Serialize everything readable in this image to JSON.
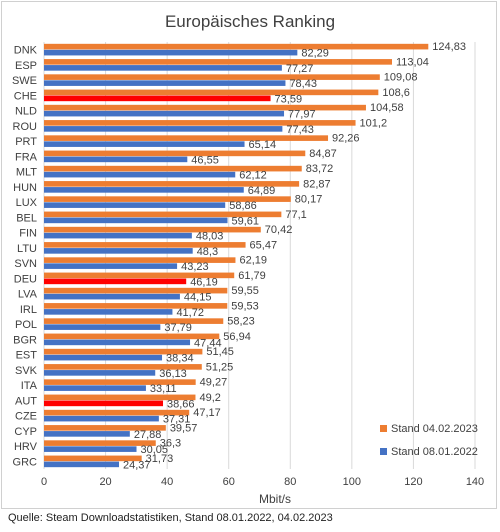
{
  "chart_data": {
    "type": "bar",
    "orientation": "horizontal",
    "title": "Europäisches Ranking",
    "xlabel": "Mbit/s",
    "ylabel": "",
    "xlim": [
      0,
      140
    ],
    "xticks": [
      "0",
      "20",
      "40",
      "60",
      "80",
      "100",
      "120",
      "140"
    ],
    "grid": true,
    "legend_position": "bottom-right",
    "categories": [
      "DNK",
      "ESP",
      "SWE",
      "CHE",
      "NLD",
      "ROU",
      "PRT",
      "FRA",
      "MLT",
      "HUN",
      "LUX",
      "BEL",
      "FIN",
      "LTU",
      "SVN",
      "DEU",
      "LVA",
      "IRL",
      "POL",
      "BGR",
      "EST",
      "SVK",
      "ITA",
      "AUT",
      "CZE",
      "CYP",
      "HRV",
      "GRC"
    ],
    "series": [
      {
        "name": "Stand 04.02.2023",
        "color": "#ED7D31",
        "values": [
          124.83,
          113.04,
          109.08,
          108.6,
          104.58,
          101.2,
          92.26,
          84.87,
          83.72,
          82.87,
          80.17,
          77.1,
          70.42,
          65.47,
          62.19,
          61.79,
          59.55,
          59.53,
          58.23,
          56.94,
          51.45,
          51.25,
          49.27,
          49.2,
          47.17,
          39.57,
          36.3,
          31.73
        ],
        "labels": [
          "124,83",
          "113,04",
          "109,08",
          "108,6",
          "104,58",
          "101,2",
          "92,26",
          "84,87",
          "83,72",
          "82,87",
          "80,17",
          "77,1",
          "70,42",
          "65,47",
          "62,19",
          "61,79",
          "59,55",
          "59,53",
          "58,23",
          "56,94",
          "51,45",
          "51,25",
          "49,27",
          "49,2",
          "47,17",
          "39,57",
          "36,3",
          "31,73"
        ]
      },
      {
        "name": "Stand 08.01.2022",
        "color": "#4472C4",
        "values": [
          82.29,
          77.27,
          78.43,
          73.59,
          77.97,
          77.43,
          65.14,
          46.55,
          62.12,
          64.89,
          58.86,
          59.61,
          48.03,
          48.3,
          43.23,
          46.19,
          44.15,
          41.72,
          37.79,
          47.44,
          38.34,
          36.13,
          33.11,
          38.66,
          37.31,
          27.88,
          30.05,
          24.37
        ],
        "labels": [
          "82,29",
          "77,27",
          "78,43",
          "73,59",
          "77,97",
          "77,43",
          "65,14",
          "46,55",
          "62,12",
          "64,89",
          "58,86",
          "59,61",
          "48,03",
          "48,3",
          "43,23",
          "46,19",
          "44,15",
          "41,72",
          "37,79",
          "47,44",
          "38,34",
          "36,13",
          "33,11",
          "38,66",
          "37,31",
          "27,88",
          "30,05",
          "24,37"
        ]
      }
    ],
    "highlight_color": "#FF0000",
    "highlighted_categories": [
      "CHE",
      "DEU",
      "AUT"
    ]
  },
  "source": "Quelle: Steam Downloadstatistiken, Stand 08.01.2022, 04.02.2023"
}
